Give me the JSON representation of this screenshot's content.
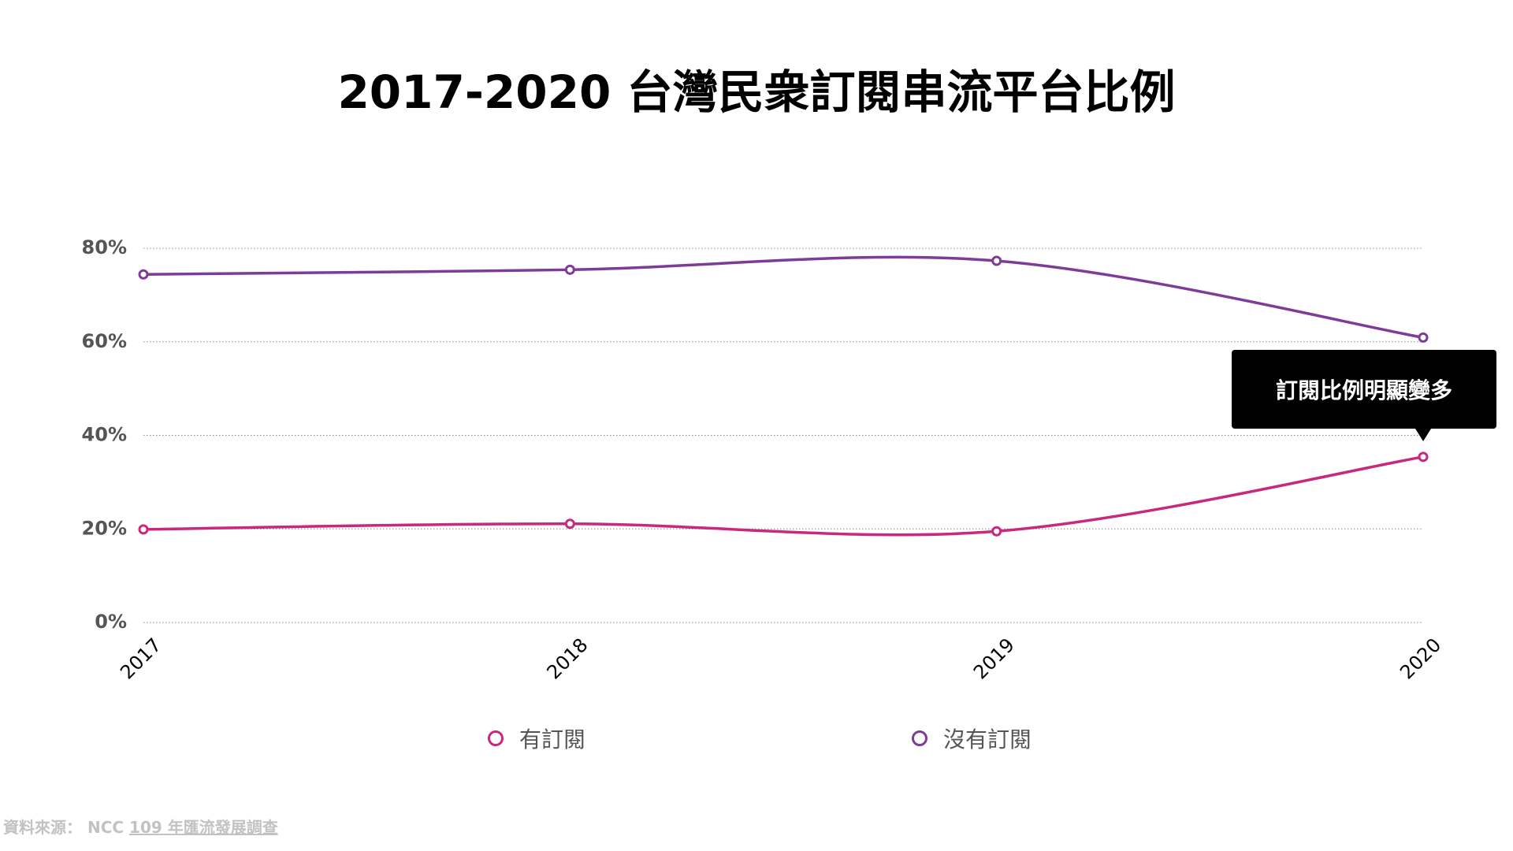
{
  "chart_data": {
    "type": "line",
    "title": "2017-2020 台灣民衆訂閱串流平台比例",
    "xlabel": "",
    "ylabel": "",
    "categories": [
      "2017",
      "2018",
      "2019",
      "2020"
    ],
    "series": [
      {
        "name": "有訂閱",
        "values": [
          19.9,
          21.1,
          19.5,
          35.4
        ],
        "color": "#c8287e"
      },
      {
        "name": "沒有訂閱",
        "values": [
          74.4,
          75.4,
          77.3,
          60.9
        ],
        "color": "#7e3c97"
      }
    ],
    "ylim": [
      0,
      80
    ],
    "yticks": [
      0,
      20,
      40,
      60,
      80
    ],
    "ytick_labels": [
      "0%",
      "20%",
      "40%",
      "60%",
      "80%"
    ],
    "grid": true,
    "legend": "bottom",
    "annotations": [
      {
        "text": "訂閱比例明顯變多",
        "series": "有訂閱",
        "category": "2020"
      }
    ]
  },
  "source": {
    "label": "資料來源：",
    "org": "NCC",
    "link_text": "109 年匯流發展調查"
  }
}
